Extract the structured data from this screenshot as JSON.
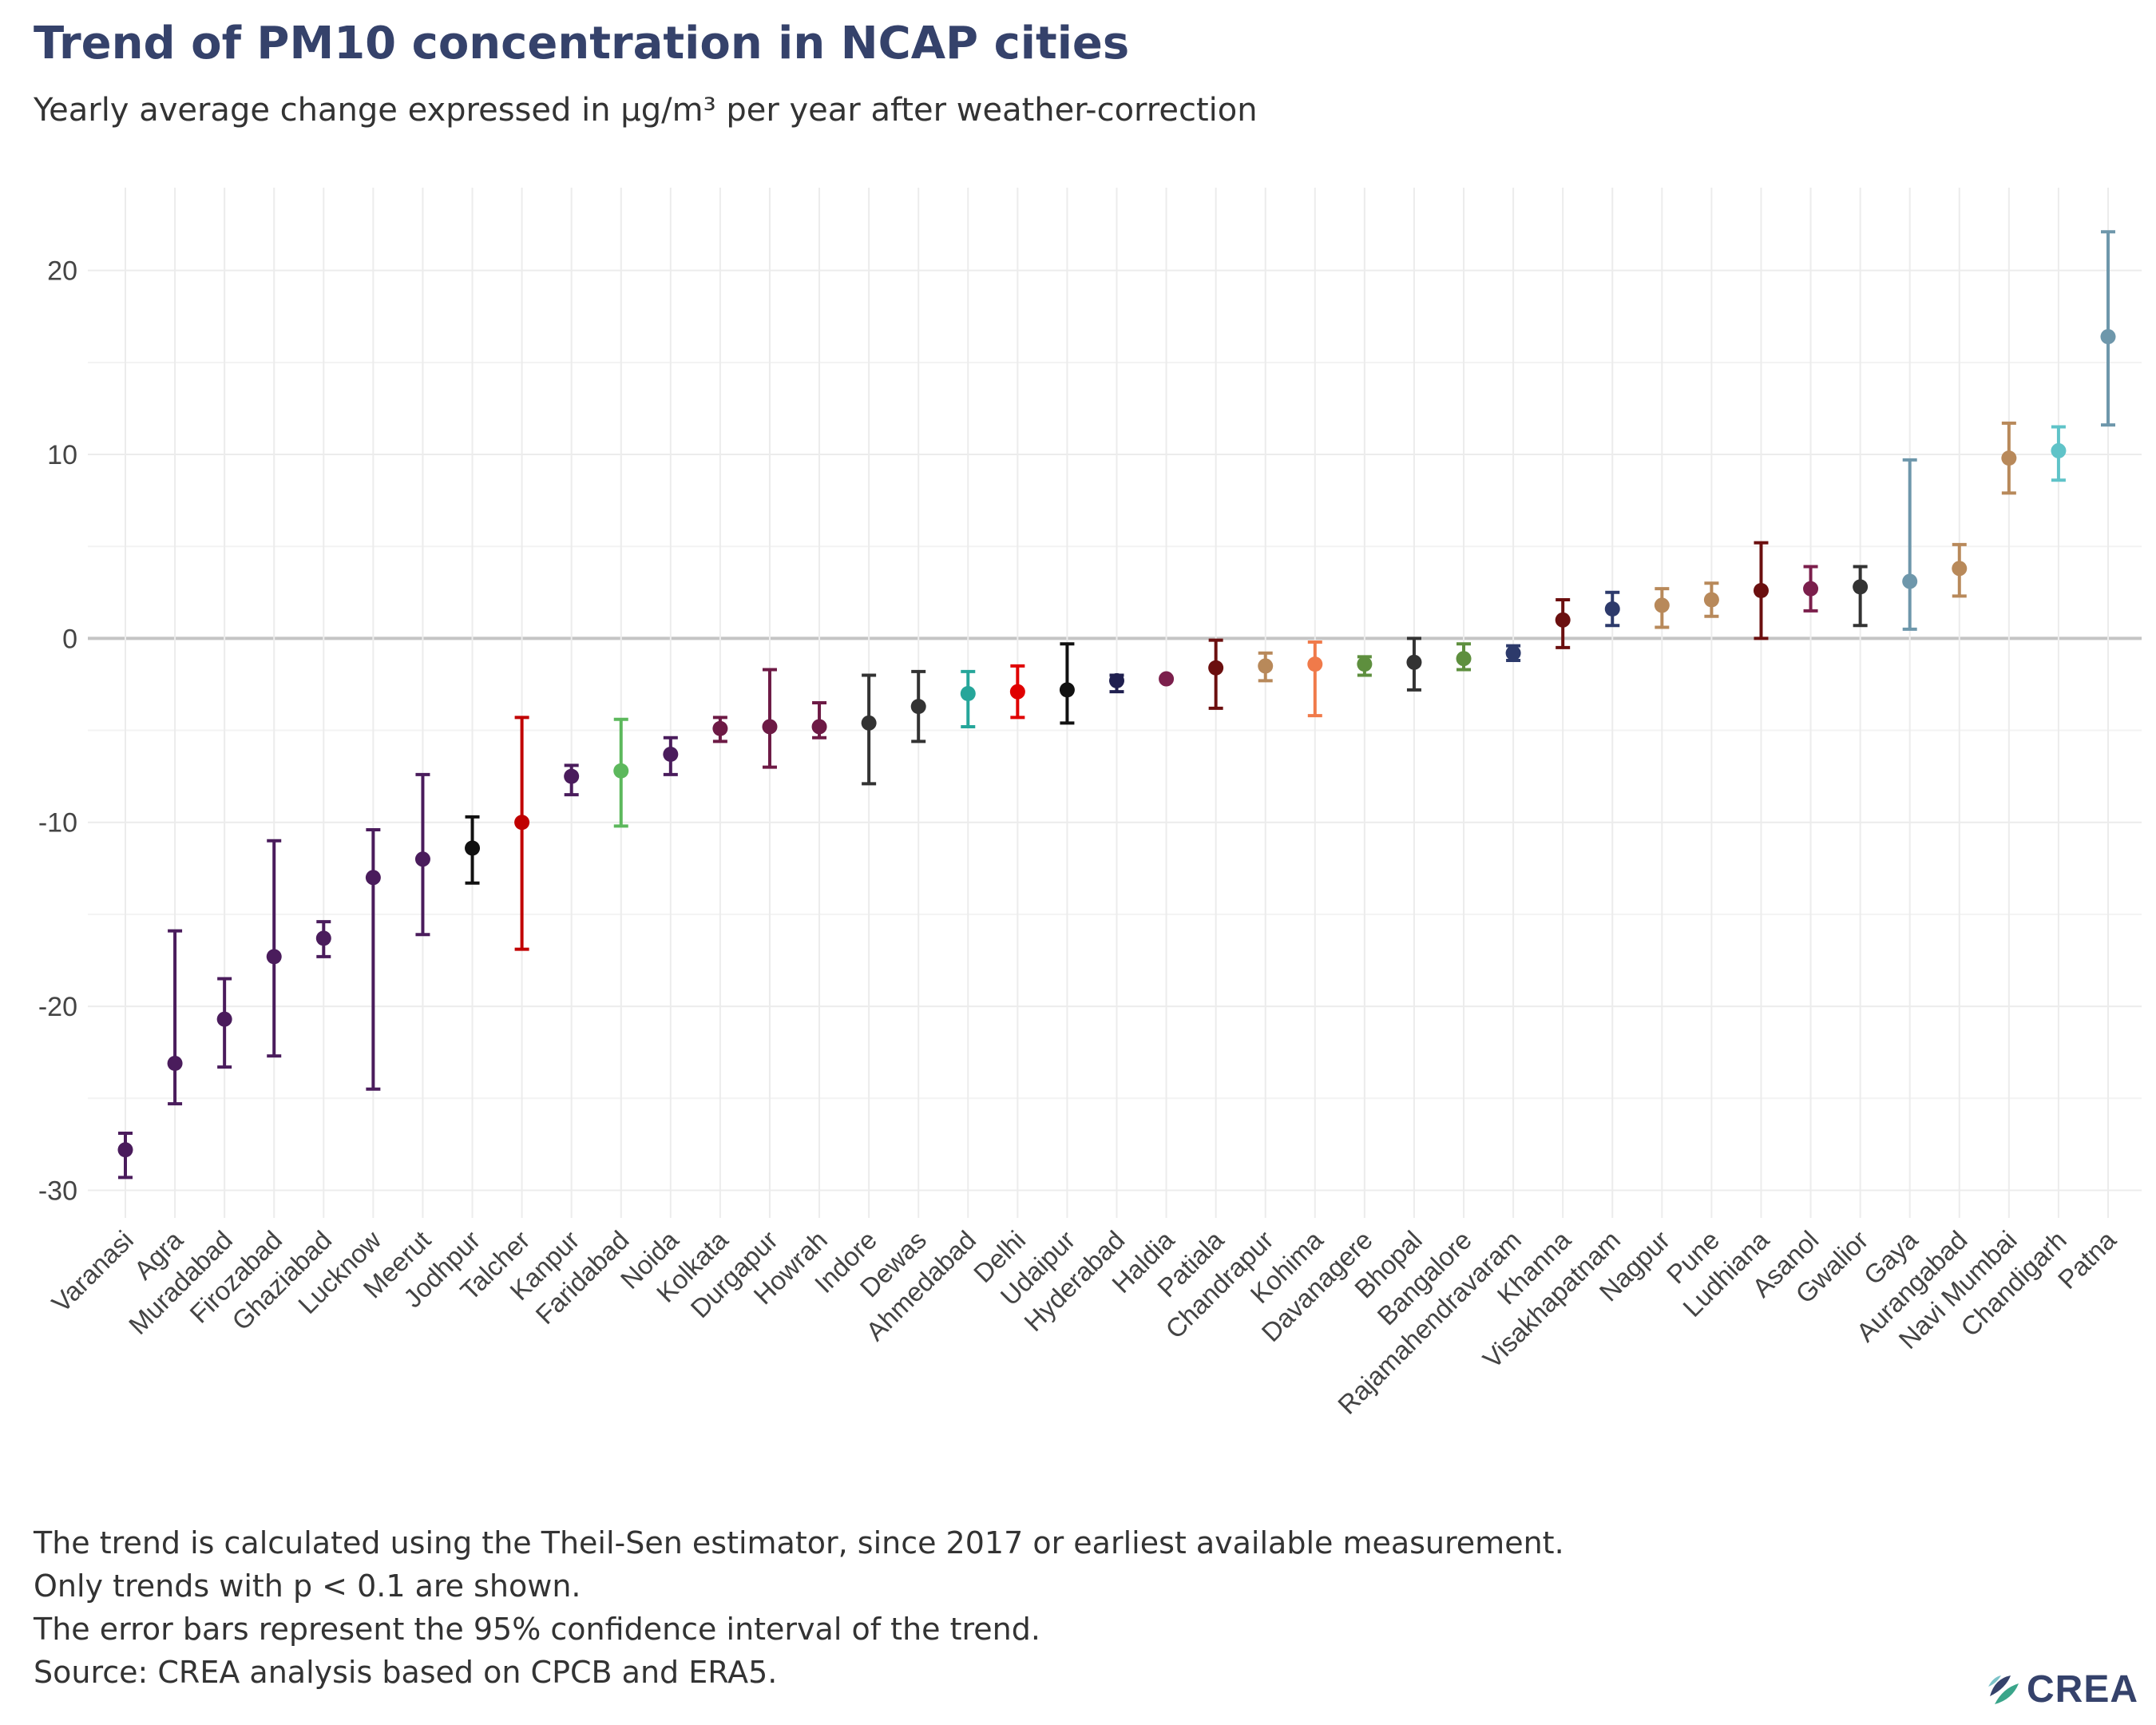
{
  "header": {
    "title": "Trend of PM10 concentration in NCAP cities",
    "subtitle": "Yearly average change expressed in µg/m³ per year after weather-correction"
  },
  "chart_data": {
    "type": "scatter",
    "subtype": "point-with-error-bars",
    "title": "Trend of PM10 concentration in NCAP cities",
    "subtitle": "Yearly average change expressed in µg/m³ per year after weather-correction",
    "xlabel": "",
    "ylabel": "",
    "ylim": [
      -31.5,
      24.5
    ],
    "yticks": [
      -30,
      -20,
      -10,
      0,
      10,
      20
    ],
    "grid": true,
    "legend": "none",
    "points": [
      {
        "city": "Varanasi",
        "value": -27.8,
        "lower": -29.3,
        "upper": -26.9,
        "color": "#4a1c5c"
      },
      {
        "city": "Agra",
        "value": -23.1,
        "lower": -25.3,
        "upper": -15.9,
        "color": "#4a1c5c"
      },
      {
        "city": "Muradabad",
        "value": -20.7,
        "lower": -23.3,
        "upper": -18.5,
        "color": "#4a1c5c"
      },
      {
        "city": "Firozabad",
        "value": -17.3,
        "lower": -22.7,
        "upper": -11.0,
        "color": "#4a1c5c"
      },
      {
        "city": "Ghaziabad",
        "value": -16.3,
        "lower": -17.3,
        "upper": -15.4,
        "color": "#4a1c5c"
      },
      {
        "city": "Lucknow",
        "value": -13.0,
        "lower": -24.5,
        "upper": -10.4,
        "color": "#4a1c5c"
      },
      {
        "city": "Meerut",
        "value": -12.0,
        "lower": -16.1,
        "upper": -7.4,
        "color": "#4a1c5c"
      },
      {
        "city": "Jodhpur",
        "value": -11.4,
        "lower": -13.3,
        "upper": -9.7,
        "color": "#111111"
      },
      {
        "city": "Talcher",
        "value": -10.0,
        "lower": -16.9,
        "upper": -4.3,
        "color": "#c00000"
      },
      {
        "city": "Kanpur",
        "value": -7.5,
        "lower": -8.5,
        "upper": -6.9,
        "color": "#4a1c5c"
      },
      {
        "city": "Faridabad",
        "value": -7.2,
        "lower": -10.2,
        "upper": -4.4,
        "color": "#5cb85c"
      },
      {
        "city": "Noida",
        "value": -6.3,
        "lower": -7.4,
        "upper": -5.4,
        "color": "#4a1c5c"
      },
      {
        "city": "Kolkata",
        "value": -4.9,
        "lower": -5.6,
        "upper": -4.3,
        "color": "#6d1a45"
      },
      {
        "city": "Durgapur",
        "value": -4.8,
        "lower": -7.0,
        "upper": -1.7,
        "color": "#6d1a45"
      },
      {
        "city": "Howrah",
        "value": -4.8,
        "lower": -5.4,
        "upper": -3.5,
        "color": "#6d1a45"
      },
      {
        "city": "Indore",
        "value": -4.6,
        "lower": -7.9,
        "upper": -2.0,
        "color": "#333333"
      },
      {
        "city": "Dewas",
        "value": -3.7,
        "lower": -5.6,
        "upper": -1.8,
        "color": "#333333"
      },
      {
        "city": "Ahmedabad",
        "value": -3.0,
        "lower": -4.8,
        "upper": -1.8,
        "color": "#26a69a"
      },
      {
        "city": "Delhi",
        "value": -2.9,
        "lower": -4.3,
        "upper": -1.5,
        "color": "#e00000"
      },
      {
        "city": "Udaipur",
        "value": -2.8,
        "lower": -4.6,
        "upper": -0.3,
        "color": "#111111"
      },
      {
        "city": "Hyderabad",
        "value": -2.3,
        "lower": -2.9,
        "upper": -2.0,
        "color": "#1f1f4f"
      },
      {
        "city": "Haldia",
        "value": -2.2,
        "lower": -2.2,
        "upper": -2.2,
        "color": "#7b1f4c"
      },
      {
        "city": "Patiala",
        "value": -1.6,
        "lower": -3.8,
        "upper": -0.1,
        "color": "#6b0f0f"
      },
      {
        "city": "Chandrapur",
        "value": -1.5,
        "lower": -2.3,
        "upper": -0.8,
        "color": "#b8895a"
      },
      {
        "city": "Kohima",
        "value": -1.4,
        "lower": -4.2,
        "upper": -0.2,
        "color": "#f07a4a"
      },
      {
        "city": "Davanagere",
        "value": -1.4,
        "lower": -2.0,
        "upper": -1.0,
        "color": "#5e8f3e"
      },
      {
        "city": "Bhopal",
        "value": -1.3,
        "lower": -2.8,
        "upper": 0.0,
        "color": "#333333"
      },
      {
        "city": "Bangalore",
        "value": -1.1,
        "lower": -1.7,
        "upper": -0.3,
        "color": "#5e8f3e"
      },
      {
        "city": "Rajamahendravaram",
        "value": -0.8,
        "lower": -1.2,
        "upper": -0.4,
        "color": "#2d3a6b"
      },
      {
        "city": "Khanna",
        "value": 1.0,
        "lower": -0.5,
        "upper": 2.1,
        "color": "#6b0f0f"
      },
      {
        "city": "Visakhapatnam",
        "value": 1.6,
        "lower": 0.7,
        "upper": 2.5,
        "color": "#2d3a6b"
      },
      {
        "city": "Nagpur",
        "value": 1.8,
        "lower": 0.6,
        "upper": 2.7,
        "color": "#b8895a"
      },
      {
        "city": "Pune",
        "value": 2.1,
        "lower": 1.2,
        "upper": 3.0,
        "color": "#b8895a"
      },
      {
        "city": "Ludhiana",
        "value": 2.6,
        "lower": 0.0,
        "upper": 5.2,
        "color": "#6b0f0f"
      },
      {
        "city": "Asanol",
        "value": 2.7,
        "lower": 1.5,
        "upper": 3.9,
        "color": "#7b1f4c"
      },
      {
        "city": "Gwalior",
        "value": 2.8,
        "lower": 0.7,
        "upper": 3.9,
        "color": "#333333"
      },
      {
        "city": "Gaya",
        "value": 3.1,
        "lower": 0.5,
        "upper": 9.7,
        "color": "#6e97ab"
      },
      {
        "city": "Aurangabad",
        "value": 3.8,
        "lower": 2.3,
        "upper": 5.1,
        "color": "#b8895a"
      },
      {
        "city": "Navi Mumbai",
        "value": 9.8,
        "lower": 7.9,
        "upper": 11.7,
        "color": "#b8895a"
      },
      {
        "city": "Chandigarh",
        "value": 10.2,
        "lower": 8.6,
        "upper": 11.5,
        "color": "#5fc3c8"
      },
      {
        "city": "Patna",
        "value": 16.4,
        "lower": 11.6,
        "upper": 22.1,
        "color": "#6e97ab"
      }
    ]
  },
  "caption": {
    "lines": [
      "The trend is calculated using the Theil-Sen estimator, since 2017 or earliest available measurement.",
      "Only trends with p < 0.1 are shown.",
      "The error bars represent the 95% confidence interval of the trend.",
      "Source: CREA analysis based on CPCB and ERA5."
    ]
  },
  "logo": {
    "text": "CREA",
    "colors": [
      "#35426b",
      "#3aa58a",
      "#7cc3c9"
    ]
  }
}
